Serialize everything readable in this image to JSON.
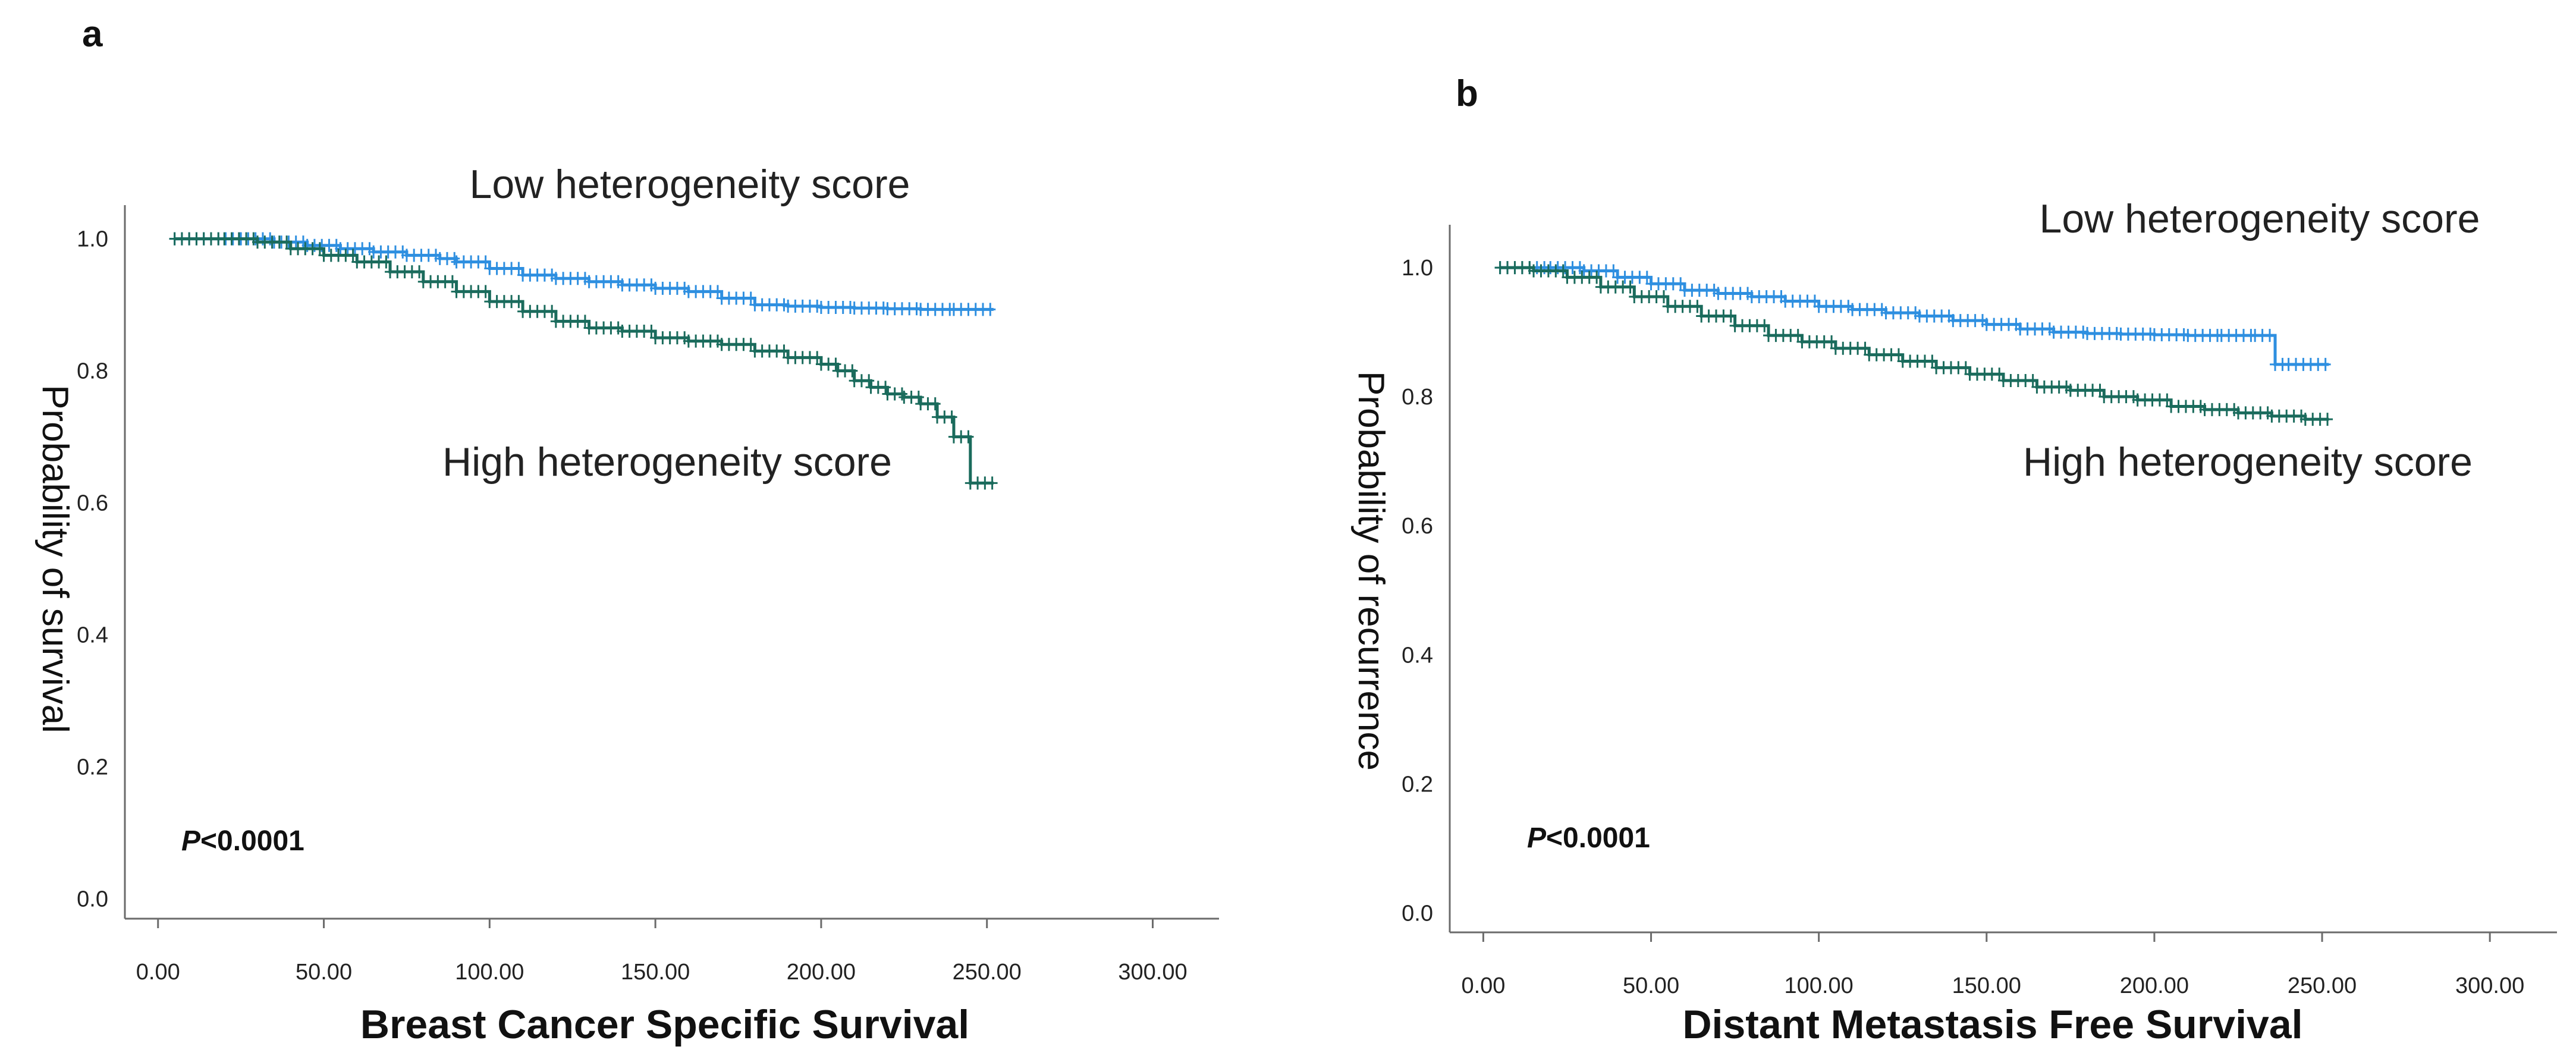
{
  "chart_data": [
    {
      "type": "line",
      "panel_label": "a",
      "xlabel": "Breast Cancer Specific Survival",
      "ylabel": "Probability of survival",
      "xlim": [
        -10,
        320
      ],
      "ylim": [
        -0.03,
        1.06
      ],
      "xticks": [
        0,
        50,
        100,
        150,
        200,
        250,
        300
      ],
      "xtick_labels": [
        "0.00",
        "50.00",
        "100.00",
        "150.00",
        "200.00",
        "250.00",
        "300.00"
      ],
      "yticks": [
        0,
        0.2,
        0.4,
        0.6,
        0.8,
        1.0
      ],
      "ytick_labels": [
        "0.0",
        "0.2",
        "0.4",
        "0.6",
        "0.8",
        "1.0"
      ],
      "annotation": {
        "p_symbol": "P",
        "p_text": "<0.0001"
      },
      "series": [
        {
          "name": "Low heterogeneity score",
          "color": "#2e8fe0",
          "x": [
            5,
            25,
            35,
            45,
            55,
            65,
            75,
            85,
            90,
            100,
            110,
            120,
            130,
            140,
            150,
            160,
            170,
            180,
            190,
            200,
            210,
            220,
            230,
            240,
            252
          ],
          "y": [
            1.0,
            1.0,
            0.995,
            0.99,
            0.985,
            0.98,
            0.975,
            0.97,
            0.965,
            0.955,
            0.945,
            0.94,
            0.935,
            0.93,
            0.925,
            0.92,
            0.91,
            0.9,
            0.898,
            0.896,
            0.895,
            0.894,
            0.893,
            0.893,
            0.893
          ]
        },
        {
          "name": "High heterogeneity score",
          "color": "#1a6b5c",
          "x": [
            5,
            20,
            30,
            40,
            50,
            60,
            70,
            80,
            90,
            100,
            110,
            120,
            130,
            140,
            150,
            160,
            170,
            180,
            190,
            200,
            205,
            210,
            215,
            220,
            225,
            230,
            235,
            240,
            245,
            252
          ],
          "y": [
            1.0,
            1.0,
            0.995,
            0.985,
            0.975,
            0.965,
            0.95,
            0.935,
            0.92,
            0.905,
            0.89,
            0.875,
            0.865,
            0.86,
            0.85,
            0.845,
            0.84,
            0.83,
            0.82,
            0.81,
            0.8,
            0.785,
            0.775,
            0.765,
            0.76,
            0.75,
            0.73,
            0.7,
            0.63,
            0.63
          ]
        }
      ]
    },
    {
      "type": "line",
      "panel_label": "b",
      "xlabel": "Distant Metastasis Free Survival",
      "ylabel": "Probability of recurrence",
      "xlim": [
        -10,
        320
      ],
      "ylim": [
        -0.03,
        1.06
      ],
      "xticks": [
        0,
        50,
        100,
        150,
        200,
        250,
        300
      ],
      "xtick_labels": [
        "0.00",
        "50.00",
        "100.00",
        "150.00",
        "200.00",
        "250.00",
        "300.00"
      ],
      "yticks": [
        0,
        0.2,
        0.4,
        0.6,
        0.8,
        1.0
      ],
      "ytick_labels": [
        "0.0",
        "0.2",
        "0.4",
        "0.6",
        "0.8",
        "1.0"
      ],
      "annotation": {
        "p_symbol": "P",
        "p_text": "<0.0001"
      },
      "series": [
        {
          "name": "Low heterogeneity score",
          "color": "#2e8fe0",
          "x": [
            5,
            20,
            30,
            40,
            50,
            60,
            70,
            80,
            90,
            100,
            110,
            120,
            130,
            140,
            150,
            160,
            170,
            180,
            190,
            200,
            210,
            220,
            230,
            236,
            240,
            252
          ],
          "y": [
            1.0,
            1.0,
            0.995,
            0.985,
            0.975,
            0.965,
            0.96,
            0.955,
            0.948,
            0.94,
            0.935,
            0.93,
            0.925,
            0.918,
            0.912,
            0.905,
            0.9,
            0.898,
            0.897,
            0.896,
            0.895,
            0.895,
            0.895,
            0.85,
            0.85,
            0.85
          ]
        },
        {
          "name": "High heterogeneity score",
          "color": "#1a6b5c",
          "x": [
            5,
            15,
            25,
            35,
            45,
            55,
            65,
            75,
            85,
            95,
            105,
            115,
            125,
            135,
            145,
            155,
            165,
            175,
            185,
            195,
            205,
            215,
            225,
            235,
            245,
            252
          ],
          "y": [
            1.0,
            0.995,
            0.985,
            0.97,
            0.955,
            0.94,
            0.925,
            0.91,
            0.895,
            0.885,
            0.875,
            0.865,
            0.855,
            0.845,
            0.835,
            0.825,
            0.815,
            0.81,
            0.8,
            0.795,
            0.785,
            0.78,
            0.775,
            0.77,
            0.765,
            0.765
          ]
        }
      ]
    }
  ]
}
